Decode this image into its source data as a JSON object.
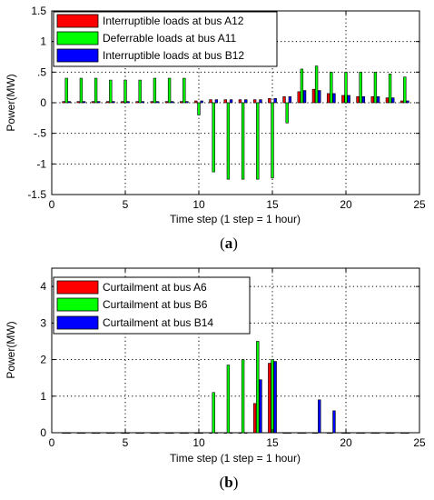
{
  "chart_data": [
    {
      "type": "bar",
      "caption_letter": "a",
      "xlabel": "Time step (1 step = 1 hour)",
      "ylabel": "Power(MW)",
      "xlim": [
        0,
        25
      ],
      "ylim": [
        -1.5,
        1.5
      ],
      "xticks": [
        0,
        5,
        10,
        15,
        20,
        25
      ],
      "yticks": [
        -1.5,
        -1,
        -0.5,
        0,
        0.5,
        1,
        1.5
      ],
      "grid": true,
      "legend_position": "top-left",
      "x": [
        1,
        2,
        3,
        4,
        5,
        6,
        7,
        8,
        9,
        10,
        11,
        12,
        13,
        14,
        15,
        16,
        17,
        18,
        19,
        20,
        21,
        22,
        23,
        24
      ],
      "series": [
        {
          "name": "Interruptible loads at bus A12",
          "color": "#ff0000",
          "values": [
            0.02,
            0.02,
            0.02,
            0.02,
            0.02,
            0.02,
            0.02,
            0.02,
            0.02,
            0.03,
            0.05,
            0.05,
            0.05,
            0.05,
            0.07,
            0.1,
            0.18,
            0.22,
            0.15,
            0.12,
            0.1,
            0.1,
            0.08,
            0.03
          ]
        },
        {
          "name": "Deferrable loads at bus A11",
          "color": "#00ff00",
          "values": [
            0.4,
            0.4,
            0.4,
            0.37,
            0.37,
            0.37,
            0.4,
            0.4,
            0.4,
            -0.2,
            -1.13,
            -1.25,
            -1.25,
            -1.25,
            -1.23,
            -0.33,
            0.55,
            0.6,
            0.5,
            0.5,
            0.5,
            0.5,
            0.47,
            0.42
          ]
        },
        {
          "name": "Interruptible loads at bus B12",
          "color": "#0000ff",
          "values": [
            0.02,
            0.02,
            0.02,
            0.02,
            0.02,
            0.02,
            0.02,
            0.02,
            0.02,
            0.03,
            0.05,
            0.05,
            0.05,
            0.05,
            0.07,
            0.1,
            0.2,
            0.2,
            0.15,
            0.12,
            0.1,
            0.1,
            0.08,
            0.03
          ]
        }
      ]
    },
    {
      "type": "bar",
      "caption_letter": "b",
      "xlabel": "Time step (1 step = 1 hour)",
      "ylabel": "Power(MW)",
      "xlim": [
        0,
        25
      ],
      "ylim": [
        0,
        4.5
      ],
      "xticks": [
        0,
        5,
        10,
        15,
        20,
        25
      ],
      "yticks": [
        0,
        1,
        2,
        3,
        4
      ],
      "grid": true,
      "legend_position": "top-left",
      "x": [
        1,
        2,
        3,
        4,
        5,
        6,
        7,
        8,
        9,
        10,
        11,
        12,
        13,
        14,
        15,
        16,
        17,
        18,
        19,
        20,
        21,
        22,
        23,
        24
      ],
      "series": [
        {
          "name": "Curtailment at bus A6",
          "color": "#ff0000",
          "values": [
            0,
            0,
            0,
            0,
            0,
            0,
            0,
            0,
            0,
            0,
            0,
            0,
            0,
            0.8,
            1.9,
            0,
            0,
            0,
            0,
            0,
            0,
            0,
            0,
            0
          ]
        },
        {
          "name": "Curtailment at bus B6",
          "color": "#00ff00",
          "values": [
            0,
            0,
            0,
            0,
            0,
            0,
            0,
            0,
            0,
            0,
            1.1,
            1.85,
            2,
            2.5,
            2,
            0,
            0,
            0,
            0,
            0,
            0,
            0,
            0,
            0
          ]
        },
        {
          "name": "Curtailment at bus B14",
          "color": "#0000ff",
          "values": [
            0,
            0,
            0,
            0,
            0,
            0,
            0,
            0,
            0,
            0,
            0,
            0,
            0,
            1.45,
            1.95,
            0,
            0,
            0.9,
            0.6,
            0,
            0,
            0,
            0,
            0
          ]
        }
      ]
    }
  ]
}
